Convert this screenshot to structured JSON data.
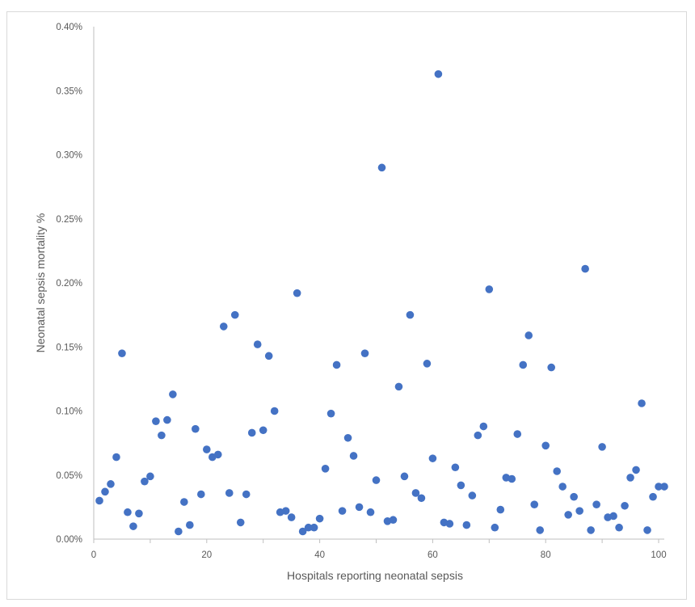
{
  "chart_data": {
    "type": "scatter",
    "title": "",
    "xlabel": "Hospitals reporting neonatal sepsis",
    "ylabel": "Neonatal sepsis mortality %",
    "xlim": [
      0,
      101
    ],
    "ylim": [
      0,
      0.004
    ],
    "x_ticks": [
      0,
      20,
      40,
      60,
      80,
      100
    ],
    "x_tick_labels": [
      "0",
      "20",
      "40",
      "60",
      "80",
      "100"
    ],
    "y_ticks": [
      0,
      0.0005,
      0.001,
      0.0015,
      0.002,
      0.0025,
      0.003,
      0.0035,
      0.004
    ],
    "y_tick_labels": [
      "0.00%",
      "0.05%",
      "0.10%",
      "0.15%",
      "0.20%",
      "0.25%",
      "0.30%",
      "0.35%",
      "0.40%"
    ],
    "grid": false,
    "legend": false,
    "marker_color": "#4472c4",
    "axis_color": "#bfbfbf",
    "series": [
      {
        "x": [
          1,
          2,
          3,
          4,
          5,
          6,
          7,
          8,
          9,
          10,
          11,
          12,
          13,
          14,
          15,
          16,
          17,
          18,
          19,
          20,
          21,
          22,
          23,
          24,
          25,
          26,
          27,
          28,
          29,
          30,
          31,
          32,
          33,
          34,
          35,
          36,
          37,
          38,
          39,
          40,
          41,
          42,
          43,
          44,
          45,
          46,
          47,
          48,
          49,
          50,
          51,
          52,
          53,
          54,
          55,
          56,
          57,
          58,
          59,
          60,
          61,
          62,
          63,
          64,
          65,
          66,
          67,
          68,
          69,
          70,
          71,
          72,
          73,
          74,
          75,
          76,
          77,
          78,
          79,
          80,
          81,
          82,
          83,
          84,
          85,
          86,
          87,
          88,
          89,
          90,
          91,
          92,
          93,
          94,
          95,
          96,
          97,
          98,
          99,
          100,
          101
        ],
        "y": [
          0.0003,
          0.00037,
          0.00043,
          0.00064,
          0.00145,
          0.00021,
          0.0001,
          0.0002,
          0.00045,
          0.00049,
          0.00092,
          0.00081,
          0.00093,
          0.00113,
          6e-05,
          0.00029,
          0.00011,
          0.00086,
          0.00035,
          0.0007,
          0.00064,
          0.00066,
          0.00166,
          0.00036,
          0.00175,
          0.00013,
          0.00035,
          0.00083,
          0.00152,
          0.00085,
          0.00143,
          0.001,
          0.00021,
          0.00022,
          0.00017,
          0.00192,
          6e-05,
          9e-05,
          9e-05,
          0.00016,
          0.00055,
          0.00098,
          0.00136,
          0.00022,
          0.00079,
          0.00065,
          0.00025,
          0.00145,
          0.00021,
          0.00046,
          0.0029,
          0.00014,
          0.00015,
          0.00119,
          0.00049,
          0.00175,
          0.00036,
          0.00032,
          0.00137,
          0.00063,
          0.00363,
          0.00013,
          0.00012,
          0.00056,
          0.00042,
          0.00011,
          0.00034,
          0.00081,
          0.00088,
          0.00195,
          9e-05,
          0.00023,
          0.00048,
          0.00047,
          0.00082,
          0.00136,
          0.00159,
          0.00027,
          7e-05,
          0.00073,
          0.00134,
          0.00053,
          0.00041,
          0.00019,
          0.00033,
          0.00022,
          0.00211,
          7e-05,
          0.00027,
          0.00072,
          0.00017,
          0.00018,
          9e-05,
          0.00026,
          0.00048,
          0.00054,
          0.00106,
          7e-05,
          0.00033,
          0.00041,
          0.00041
        ]
      }
    ]
  }
}
